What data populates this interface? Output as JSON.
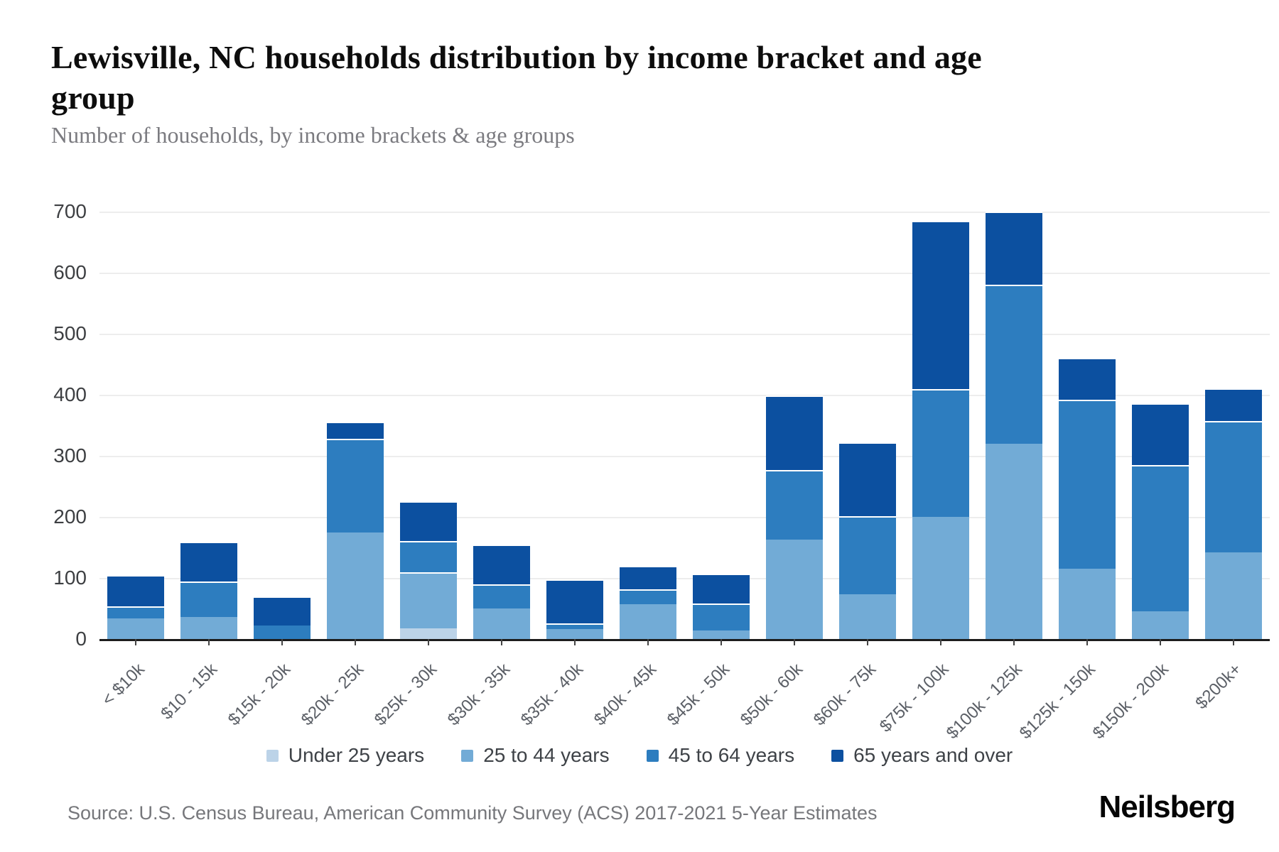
{
  "header": {
    "title": "Lewisville, NC households distribution by income bracket and age group",
    "subtitle": "Number of households, by income brackets & age groups"
  },
  "chart_data": {
    "type": "bar",
    "stacked": true,
    "title": "Lewisville, NC households distribution by income bracket and age group",
    "subtitle": "Number of households, by income brackets & age groups",
    "xlabel": "",
    "ylabel": "Number of households",
    "ylim": [
      0,
      700
    ],
    "yticks": [
      0,
      100,
      200,
      300,
      400,
      500,
      600,
      700
    ],
    "grid": "horizontal",
    "legend_position": "bottom",
    "categories": [
      "< $10k",
      "$10 - 15k",
      "$15k - 20k",
      "$20k - 25k",
      "$25k - 30k",
      "$30k - 35k",
      "$35k - 40k",
      "$40k - 45k",
      "$45k - 50k",
      "$50k - 60k",
      "$60k - 75k",
      "$75k - 100k",
      "$100k - 125k",
      "$125k - 150k",
      "$150k - 200k",
      "$200k+"
    ],
    "series": [
      {
        "name": "Under 25 years",
        "color": "#bcd3e8",
        "values": [
          0,
          0,
          0,
          0,
          17,
          0,
          0,
          0,
          0,
          0,
          0,
          0,
          0,
          0,
          0,
          0
        ]
      },
      {
        "name": "25 to 44 years",
        "color": "#72abd6",
        "values": [
          34,
          36,
          0,
          174,
          92,
          50,
          16,
          57,
          14,
          163,
          73,
          200,
          320,
          115,
          45,
          142
        ]
      },
      {
        "name": "45 to 64 years",
        "color": "#2d7dbf",
        "values": [
          19,
          58,
          22,
          154,
          52,
          39,
          10,
          24,
          44,
          114,
          128,
          209,
          260,
          277,
          240,
          215
        ]
      },
      {
        "name": "65 years and over",
        "color": "#0c50a0",
        "values": [
          52,
          65,
          48,
          28,
          65,
          66,
          72,
          39,
          49,
          122,
          121,
          276,
          120,
          68,
          101,
          54
        ]
      }
    ]
  },
  "footer": {
    "source": "Source: U.S. Census Bureau, American Community Survey (ACS) 2017-2021 5-Year Estimates",
    "brand": "Neilsberg"
  }
}
